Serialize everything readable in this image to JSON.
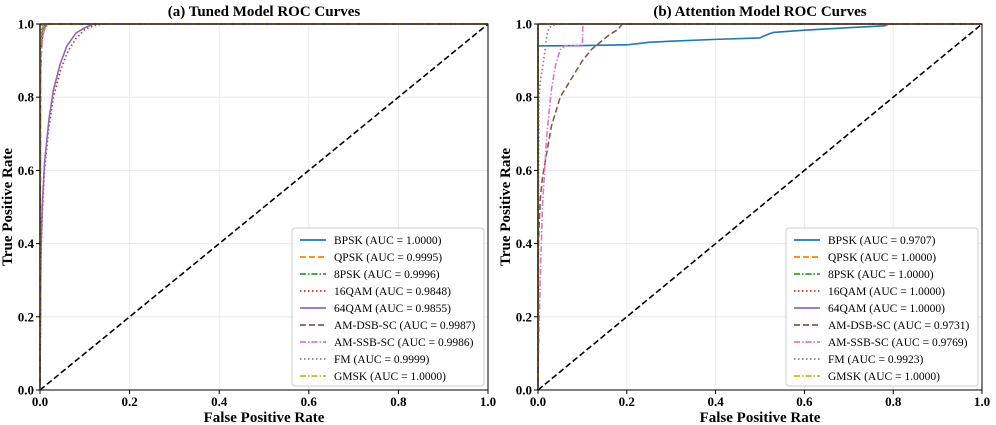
{
  "chart_data": [
    {
      "type": "line",
      "title": "(a) Tuned Model ROC Curves",
      "xlabel": "False Positive Rate",
      "ylabel": "True Positive Rate",
      "xlim": [
        0.0,
        1.0
      ],
      "ylim": [
        0.0,
        1.0
      ],
      "xticks": [
        "0.0",
        "0.2",
        "0.4",
        "0.6",
        "0.8",
        "1.0"
      ],
      "yticks": [
        "0.0",
        "0.2",
        "0.4",
        "0.6",
        "0.8",
        "1.0"
      ],
      "grid": true,
      "legend_position": "lower-right",
      "series": [
        {
          "name": "BPSK (AUC = 1.0000)",
          "color": "#1f77b4",
          "dash": "solid",
          "x": [
            0,
            0,
            1
          ],
          "y": [
            0,
            1,
            1
          ]
        },
        {
          "name": "QPSK (AUC = 0.9995)",
          "color": "#ff7f0e",
          "dash": "dashed",
          "x": [
            0,
            0.001,
            0.004,
            0.008,
            0.012,
            1
          ],
          "y": [
            0,
            0.96,
            0.985,
            0.995,
            1,
            1
          ]
        },
        {
          "name": "8PSK (AUC = 0.9996)",
          "color": "#2ca02c",
          "dash": "dashdot",
          "x": [
            0,
            0.001,
            0.004,
            0.008,
            0.012,
            1
          ],
          "y": [
            0,
            0.93,
            0.975,
            0.99,
            1,
            1
          ]
        },
        {
          "name": "16QAM (AUC = 0.9848)",
          "color": "#d62728",
          "dash": "dotted",
          "x": [
            0,
            0.002,
            0.005,
            0.01,
            0.02,
            0.03,
            0.045,
            0.06,
            0.08,
            0.1,
            0.12,
            0.14,
            1
          ],
          "y": [
            0,
            0.35,
            0.48,
            0.6,
            0.72,
            0.8,
            0.87,
            0.92,
            0.96,
            0.985,
            0.995,
            1,
            1
          ]
        },
        {
          "name": "64QAM (AUC = 0.9855)",
          "color": "#9467bd",
          "dash": "solid",
          "x": [
            0,
            0.002,
            0.005,
            0.01,
            0.02,
            0.03,
            0.045,
            0.06,
            0.08,
            0.1,
            0.12,
            1
          ],
          "y": [
            0,
            0.37,
            0.5,
            0.62,
            0.74,
            0.82,
            0.89,
            0.94,
            0.975,
            0.99,
            1,
            1
          ]
        },
        {
          "name": "AM-DSB-SC (AUC = 0.9987)",
          "color": "#8c564b",
          "dash": "dashed",
          "x": [
            0,
            0.001,
            0.003,
            0.006,
            0.01,
            0.015,
            0.02,
            1
          ],
          "y": [
            0,
            0.85,
            0.93,
            0.97,
            0.99,
            0.997,
            1,
            1
          ]
        },
        {
          "name": "AM-SSB-SC (AUC = 0.9986)",
          "color": "#e377c2",
          "dash": "dashdot",
          "x": [
            0,
            0.001,
            0.003,
            0.006,
            0.01,
            0.015,
            0.02,
            1
          ],
          "y": [
            0,
            0.84,
            0.92,
            0.965,
            0.985,
            0.995,
            1,
            1
          ]
        },
        {
          "name": "FM (AUC = 0.9999)",
          "color": "#7f7f7f",
          "dash": "dotted",
          "x": [
            0,
            0.001,
            0.003,
            0.006,
            1
          ],
          "y": [
            0,
            0.97,
            0.99,
            1,
            1
          ]
        },
        {
          "name": "GMSK (AUC = 1.0000)",
          "color": "#bcbd22",
          "dash": "dashdot",
          "x": [
            0,
            0,
            1
          ],
          "y": [
            0,
            1,
            1
          ]
        }
      ],
      "reference_line": {
        "x": [
          0,
          1
        ],
        "y": [
          0,
          1
        ],
        "color": "#000000",
        "dash": "dashed"
      }
    },
    {
      "type": "line",
      "title": "(b) Attention Model ROC Curves",
      "xlabel": "False Positive Rate",
      "ylabel": "True Positive Rate",
      "xlim": [
        0.0,
        1.0
      ],
      "ylim": [
        0.0,
        1.0
      ],
      "xticks": [
        "0.0",
        "0.2",
        "0.4",
        "0.6",
        "0.8",
        "1.0"
      ],
      "yticks": [
        "0.0",
        "0.2",
        "0.4",
        "0.6",
        "0.8",
        "1.0"
      ],
      "grid": true,
      "legend_position": "lower-right",
      "series": [
        {
          "name": "BPSK (AUC = 0.9707)",
          "color": "#1f77b4",
          "dash": "solid",
          "x": [
            0,
            0,
            0.1,
            0.2,
            0.25,
            0.3,
            0.4,
            0.5,
            0.51,
            0.53,
            0.6,
            0.7,
            0.78,
            0.79,
            1
          ],
          "y": [
            0,
            0.94,
            0.941,
            0.943,
            0.95,
            0.953,
            0.958,
            0.962,
            0.968,
            0.977,
            0.983,
            0.99,
            0.995,
            1,
            1
          ]
        },
        {
          "name": "QPSK (AUC = 1.0000)",
          "color": "#ff7f0e",
          "dash": "dashed",
          "x": [
            0,
            0,
            1
          ],
          "y": [
            0,
            1,
            1
          ]
        },
        {
          "name": "8PSK (AUC = 1.0000)",
          "color": "#2ca02c",
          "dash": "dashdot",
          "x": [
            0,
            0,
            1
          ],
          "y": [
            0,
            1,
            1
          ]
        },
        {
          "name": "16QAM (AUC = 1.0000)",
          "color": "#d62728",
          "dash": "dotted",
          "x": [
            0,
            0,
            1
          ],
          "y": [
            0,
            1,
            1
          ]
        },
        {
          "name": "64QAM (AUC = 1.0000)",
          "color": "#9467bd",
          "dash": "solid",
          "x": [
            0,
            0,
            1
          ],
          "y": [
            0,
            1,
            1
          ]
        },
        {
          "name": "AM-DSB-SC (AUC = 0.9731)",
          "color": "#8c564b",
          "dash": "dashed",
          "x": [
            0,
            0.001,
            0.005,
            0.01,
            0.02,
            0.03,
            0.05,
            0.08,
            0.1,
            0.12,
            0.14,
            0.16,
            0.18,
            0.19,
            1
          ],
          "y": [
            0,
            0.4,
            0.52,
            0.58,
            0.65,
            0.72,
            0.8,
            0.86,
            0.9,
            0.93,
            0.95,
            0.97,
            0.985,
            1,
            1
          ]
        },
        {
          "name": "AM-SSB-SC (AUC = 0.9769)",
          "color": "#e377c2",
          "dash": "dashdot",
          "x": [
            0,
            0.001,
            0.005,
            0.01,
            0.02,
            0.03,
            0.04,
            0.05,
            0.06,
            0.1,
            0.101,
            1
          ],
          "y": [
            0,
            0.1,
            0.3,
            0.5,
            0.7,
            0.82,
            0.89,
            0.93,
            0.94,
            0.94,
            1,
            1
          ]
        },
        {
          "name": "FM (AUC = 0.9923)",
          "color": "#7f7f7f",
          "dash": "dotted",
          "x": [
            0,
            0.002,
            0.006,
            0.01,
            0.015,
            0.02,
            0.025,
            0.04,
            1
          ],
          "y": [
            0,
            0.8,
            0.85,
            0.88,
            0.92,
            0.97,
            0.99,
            1,
            1
          ]
        },
        {
          "name": "GMSK (AUC = 1.0000)",
          "color": "#bcbd22",
          "dash": "dashdot",
          "x": [
            0,
            0,
            1
          ],
          "y": [
            0,
            1,
            1
          ]
        }
      ],
      "reference_line": {
        "x": [
          0,
          1
        ],
        "y": [
          0,
          1
        ],
        "color": "#000000",
        "dash": "dashed"
      }
    }
  ]
}
